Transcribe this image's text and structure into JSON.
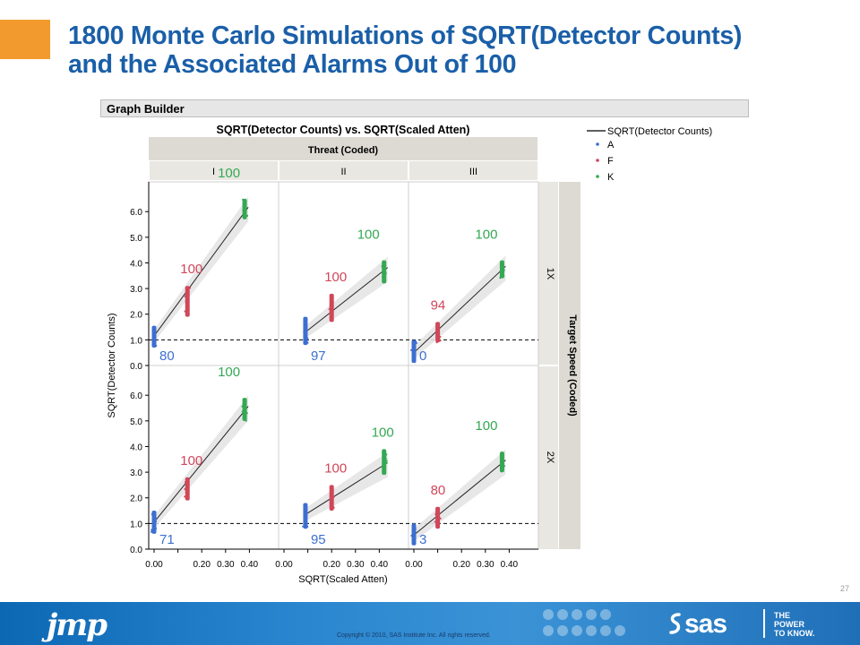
{
  "slide": {
    "title_line1": "1800 Monte Carlo Simulations of SQRT(Detector Counts)",
    "title_line2": "and the Associated Alarms Out of 100",
    "page_number": "27"
  },
  "graph_builder": {
    "label": "Graph Builder"
  },
  "footer": {
    "jmp_logo": "jmp",
    "copyright": "Copyright © 2010, SAS Institute Inc. All rights reserved.",
    "sas_logo": "sas",
    "tagline_line1": "THE",
    "tagline_line2": "POWER",
    "tagline_line3": "TO KNOW."
  },
  "colors": {
    "A": "#3d6fd0",
    "F": "#d0475a",
    "K": "#34a853",
    "title": "#1a5fa8",
    "accent": "#f39a2e"
  },
  "chart_data": {
    "type": "scatter",
    "title": "SQRT(Detector Counts) vs. SQRT(Scaled Atten)",
    "xlabel": "SQRT(Scaled Atten)",
    "ylabel": "SQRT(Detector Counts)",
    "xlim": [
      0.0,
      0.5
    ],
    "ylim": [
      0.0,
      7.0
    ],
    "x_ticks": [
      "0.00",
      "0.20",
      "0.30",
      "0.40"
    ],
    "y_ticks": [
      "0.0",
      "1.0",
      "2.0",
      "3.0",
      "4.0",
      "5.0",
      "6.0"
    ],
    "column_group_label": "Threat (Coded)",
    "columns": [
      "I",
      "II",
      "III"
    ],
    "row_group_label": "Target Speed (Coded)",
    "rows": [
      "1X",
      "2X"
    ],
    "threshold": 1.0,
    "legend": {
      "line_label": "SQRT(Detector Counts)",
      "items": [
        "A",
        "F",
        "K"
      ],
      "placement": "right"
    },
    "panels": [
      {
        "row": "1X",
        "col": "I",
        "groups": [
          {
            "name": "A",
            "x": 0.0,
            "center": 1.15,
            "low": 0.7,
            "high": 1.55,
            "alarms": "80"
          },
          {
            "name": "F",
            "x": 0.14,
            "center": 2.6,
            "low": 1.9,
            "high": 3.1,
            "alarms": "100"
          },
          {
            "name": "K",
            "x": 0.38,
            "center": 6.1,
            "low": 5.7,
            "high": 6.5,
            "alarms": "100"
          }
        ]
      },
      {
        "row": "1X",
        "col": "II",
        "groups": [
          {
            "name": "A",
            "x": 0.09,
            "center": 1.3,
            "low": 0.8,
            "high": 1.9,
            "alarms": "97"
          },
          {
            "name": "F",
            "x": 0.2,
            "center": 2.25,
            "low": 1.7,
            "high": 2.8,
            "alarms": "100"
          },
          {
            "name": "K",
            "x": 0.42,
            "center": 3.75,
            "low": 3.2,
            "high": 4.1,
            "alarms": "100"
          }
        ]
      },
      {
        "row": "1X",
        "col": "III",
        "groups": [
          {
            "name": "A",
            "x": 0.0,
            "center": 0.5,
            "low": 0.1,
            "high": 1.0,
            "alarms": "0"
          },
          {
            "name": "F",
            "x": 0.1,
            "center": 1.3,
            "low": 0.9,
            "high": 1.7,
            "alarms": "94"
          },
          {
            "name": "K",
            "x": 0.37,
            "center": 3.8,
            "low": 3.4,
            "high": 4.1,
            "alarms": "100"
          }
        ]
      },
      {
        "row": "2X",
        "col": "I",
        "groups": [
          {
            "name": "A",
            "x": 0.0,
            "center": 1.05,
            "low": 0.6,
            "high": 1.5,
            "alarms": "71"
          },
          {
            "name": "F",
            "x": 0.14,
            "center": 2.35,
            "low": 1.9,
            "high": 2.8,
            "alarms": "100"
          },
          {
            "name": "K",
            "x": 0.38,
            "center": 5.5,
            "low": 5.0,
            "high": 5.9,
            "alarms": "100"
          }
        ]
      },
      {
        "row": "2X",
        "col": "II",
        "groups": [
          {
            "name": "A",
            "x": 0.09,
            "center": 1.35,
            "low": 0.8,
            "high": 1.8,
            "alarms": "95"
          },
          {
            "name": "F",
            "x": 0.2,
            "center": 1.95,
            "low": 1.5,
            "high": 2.5,
            "alarms": "100"
          },
          {
            "name": "K",
            "x": 0.42,
            "center": 3.3,
            "low": 2.9,
            "high": 3.9,
            "alarms": "100"
          }
        ]
      },
      {
        "row": "2X",
        "col": "III",
        "groups": [
          {
            "name": "A",
            "x": 0.0,
            "center": 0.55,
            "low": 0.15,
            "high": 1.0,
            "alarms": "3"
          },
          {
            "name": "F",
            "x": 0.1,
            "center": 1.2,
            "low": 0.8,
            "high": 1.65,
            "alarms": "80"
          },
          {
            "name": "K",
            "x": 0.37,
            "center": 3.4,
            "low": 3.0,
            "high": 3.8,
            "alarms": "100"
          }
        ]
      }
    ]
  }
}
